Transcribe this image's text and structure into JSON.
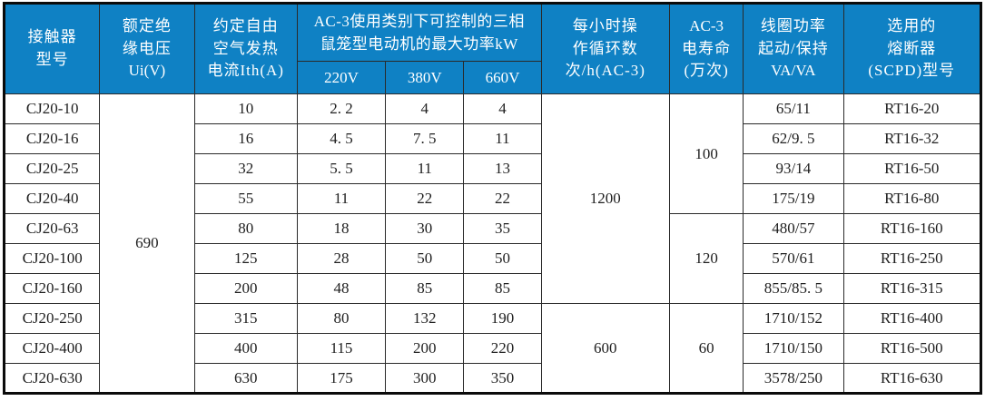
{
  "colors": {
    "header_bg": "#0F81C4",
    "header_text": "#FFFFFF",
    "border": "#2A2A2A",
    "body_text": "#1F1F1F"
  },
  "table": {
    "headers": {
      "model": [
        "接触器",
        "型号"
      ],
      "insulation_voltage": [
        "额定绝",
        "缘电压",
        "Ui(V)"
      ],
      "thermal_current": [
        "约定自由",
        "空气发热",
        "电流Ith(A)"
      ],
      "ac3_power_group": [
        "AC-3使用类别下可控制的三相",
        "鼠笼型电动机的最大功率kW"
      ],
      "v220": "220V",
      "v380": "380V",
      "v660": "660V",
      "cycles_per_hour": [
        "每小时操",
        "作循环数",
        "次/h(AC-3)"
      ],
      "electrical_life": [
        "AC-3",
        "电寿命",
        "(万次)"
      ],
      "coil_power": [
        "线圈功率",
        "起动/保持",
        "VA/VA"
      ],
      "fuse": [
        "选用的",
        "熔断器",
        "(SCPD)型号"
      ]
    },
    "merged": {
      "insulation_voltage": "690",
      "cycles_group1": "1200",
      "cycles_group2": "600",
      "life_group1": "100",
      "life_group2": "120",
      "life_group3": "60"
    },
    "rows": [
      {
        "model": "CJ20-10",
        "ith": "10",
        "p220": "2. 2",
        "p380": "4",
        "p660": "4",
        "coil": "65/11",
        "fuse": "RT16-20"
      },
      {
        "model": "CJ20-16",
        "ith": "16",
        "p220": "4. 5",
        "p380": "7. 5",
        "p660": "11",
        "coil": "62/9. 5",
        "fuse": "RT16-32"
      },
      {
        "model": "CJ20-25",
        "ith": "32",
        "p220": "5. 5",
        "p380": "11",
        "p660": "13",
        "coil": "93/14",
        "fuse": "RT16-50"
      },
      {
        "model": "CJ20-40",
        "ith": "55",
        "p220": "11",
        "p380": "22",
        "p660": "22",
        "coil": "175/19",
        "fuse": "RT16-80"
      },
      {
        "model": "CJ20-63",
        "ith": "80",
        "p220": "18",
        "p380": "30",
        "p660": "35",
        "coil": "480/57",
        "fuse": "RT16-160"
      },
      {
        "model": "CJ20-100",
        "ith": "125",
        "p220": "28",
        "p380": "50",
        "p660": "50",
        "coil": "570/61",
        "fuse": "RT16-250"
      },
      {
        "model": "CJ20-160",
        "ith": "200",
        "p220": "48",
        "p380": "85",
        "p660": "85",
        "coil": "855/85. 5",
        "fuse": "RT16-315"
      },
      {
        "model": "CJ20-250",
        "ith": "315",
        "p220": "80",
        "p380": "132",
        "p660": "190",
        "coil": "1710/152",
        "fuse": "RT16-400"
      },
      {
        "model": "CJ20-400",
        "ith": "400",
        "p220": "115",
        "p380": "200",
        "p660": "220",
        "coil": "1710/150",
        "fuse": "RT16-500"
      },
      {
        "model": "CJ20-630",
        "ith": "630",
        "p220": "175",
        "p380": "300",
        "p660": "350",
        "coil": "3578/250",
        "fuse": "RT16-630"
      }
    ]
  }
}
